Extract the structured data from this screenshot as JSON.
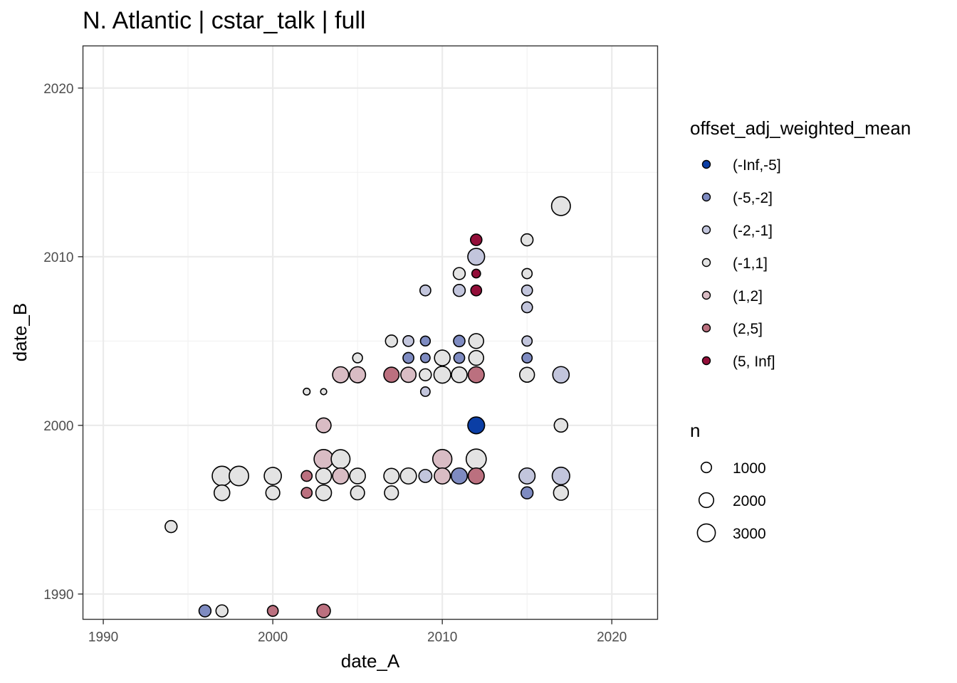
{
  "chart_data": {
    "type": "scatter",
    "title": "N. Atlantic | cstar_talk | full",
    "xlabel": "date_A",
    "ylabel": "date_B",
    "xlim": [
      1988.8,
      2022.7
    ],
    "ylim": [
      1988.5,
      2022.5
    ],
    "x_ticks": [
      1990,
      2000,
      2010,
      2020
    ],
    "y_ticks": [
      1990,
      2000,
      2010,
      2020
    ],
    "grid": true,
    "legend_position": "right",
    "color_legend": {
      "title": "offset_adj_weighted_mean",
      "categories": [
        {
          "label": "(-Inf,-5]",
          "color": "#0b3ea5"
        },
        {
          "label": "(-5,-2]",
          "color": "#7e8bc1"
        },
        {
          "label": "(-2,-1]",
          "color": "#c2c5dc"
        },
        {
          "label": "(-1,1]",
          "color": "#e3e3e3"
        },
        {
          "label": "(1,2]",
          "color": "#d9bcc4"
        },
        {
          "label": "(2,5]",
          "color": "#bb707f"
        },
        {
          "label": "(5, Inf]",
          "color": "#930e39"
        }
      ]
    },
    "size_legend": {
      "title": "n",
      "values": [
        1000,
        2000,
        3000
      ]
    },
    "points": [
      {
        "x": 1994,
        "y": 1994,
        "n": 900,
        "bin": "(-1,1]"
      },
      {
        "x": 1996,
        "y": 1989,
        "n": 900,
        "bin": "(-5,-2]"
      },
      {
        "x": 1997,
        "y": 1989,
        "n": 900,
        "bin": "(-1,1]"
      },
      {
        "x": 2000,
        "y": 1989,
        "n": 700,
        "bin": "(2,5]"
      },
      {
        "x": 2003,
        "y": 1989,
        "n": 1200,
        "bin": "(2,5]"
      },
      {
        "x": 1997,
        "y": 1997,
        "n": 2800,
        "bin": "(-1,1]"
      },
      {
        "x": 1997,
        "y": 1996,
        "n": 1700,
        "bin": "(-1,1]"
      },
      {
        "x": 1998,
        "y": 1997,
        "n": 2800,
        "bin": "(-1,1]"
      },
      {
        "x": 2000,
        "y": 1997,
        "n": 2100,
        "bin": "(-1,1]"
      },
      {
        "x": 2000,
        "y": 1996,
        "n": 1300,
        "bin": "(-1,1]"
      },
      {
        "x": 2002,
        "y": 1997,
        "n": 700,
        "bin": "(2,5]"
      },
      {
        "x": 2002,
        "y": 1996,
        "n": 700,
        "bin": "(2,5]"
      },
      {
        "x": 2003,
        "y": 1997,
        "n": 1700,
        "bin": "(-1,1]"
      },
      {
        "x": 2003,
        "y": 1996,
        "n": 1700,
        "bin": "(-1,1]"
      },
      {
        "x": 2003,
        "y": 1998,
        "n": 2700,
        "bin": "(1,2]"
      },
      {
        "x": 2004,
        "y": 1997,
        "n": 1800,
        "bin": "(1,2]"
      },
      {
        "x": 2004,
        "y": 1998,
        "n": 2600,
        "bin": "(-1,1]"
      },
      {
        "x": 2005,
        "y": 1997,
        "n": 1700,
        "bin": "(-1,1]"
      },
      {
        "x": 2005,
        "y": 1996,
        "n": 1300,
        "bin": "(-1,1]"
      },
      {
        "x": 2007,
        "y": 1997,
        "n": 1600,
        "bin": "(-1,1]"
      },
      {
        "x": 2007,
        "y": 1996,
        "n": 1300,
        "bin": "(-1,1]"
      },
      {
        "x": 2008,
        "y": 1997,
        "n": 1800,
        "bin": "(-1,1]"
      },
      {
        "x": 2009,
        "y": 1997,
        "n": 1100,
        "bin": "(-2,-1]"
      },
      {
        "x": 2010,
        "y": 1997,
        "n": 1800,
        "bin": "(1,2]"
      },
      {
        "x": 2010,
        "y": 1998,
        "n": 2700,
        "bin": "(1,2]"
      },
      {
        "x": 2011,
        "y": 1997,
        "n": 1800,
        "bin": "(-5,-2]"
      },
      {
        "x": 2012,
        "y": 1997,
        "n": 1800,
        "bin": "(2,5]"
      },
      {
        "x": 2012,
        "y": 1998,
        "n": 3000,
        "bin": "(-1,1]"
      },
      {
        "x": 2015,
        "y": 1997,
        "n": 1800,
        "bin": "(-2,-1]"
      },
      {
        "x": 2015,
        "y": 1996,
        "n": 900,
        "bin": "(-5,-2]"
      },
      {
        "x": 2017,
        "y": 1997,
        "n": 2200,
        "bin": "(-2,-1]"
      },
      {
        "x": 2017,
        "y": 1996,
        "n": 1500,
        "bin": "(-1,1]"
      },
      {
        "x": 2003,
        "y": 2000,
        "n": 1500,
        "bin": "(1,2]"
      },
      {
        "x": 2012,
        "y": 2000,
        "n": 2000,
        "bin": "(-Inf,-5]"
      },
      {
        "x": 2017,
        "y": 2000,
        "n": 1200,
        "bin": "(-1,1]"
      },
      {
        "x": 2002,
        "y": 2002,
        "n": 200,
        "bin": "(-1,1]"
      },
      {
        "x": 2003,
        "y": 2002,
        "n": 150,
        "bin": "(-1,1]"
      },
      {
        "x": 2009,
        "y": 2002,
        "n": 500,
        "bin": "(-2,-1]"
      },
      {
        "x": 2004,
        "y": 2003,
        "n": 1800,
        "bin": "(1,2]"
      },
      {
        "x": 2005,
        "y": 2003,
        "n": 1800,
        "bin": "(1,2]"
      },
      {
        "x": 2007,
        "y": 2003,
        "n": 1600,
        "bin": "(2,5]"
      },
      {
        "x": 2008,
        "y": 2003,
        "n": 1600,
        "bin": "(1,2]"
      },
      {
        "x": 2009,
        "y": 2003,
        "n": 900,
        "bin": "(-1,1]"
      },
      {
        "x": 2010,
        "y": 2003,
        "n": 2000,
        "bin": "(-1,1]"
      },
      {
        "x": 2011,
        "y": 2003,
        "n": 1700,
        "bin": "(-1,1]"
      },
      {
        "x": 2012,
        "y": 2003,
        "n": 1800,
        "bin": "(2,5]"
      },
      {
        "x": 2015,
        "y": 2003,
        "n": 1500,
        "bin": "(-1,1]"
      },
      {
        "x": 2017,
        "y": 2003,
        "n": 1900,
        "bin": "(-2,-1]"
      },
      {
        "x": 2005,
        "y": 2004,
        "n": 550,
        "bin": "(-1,1]"
      },
      {
        "x": 2008,
        "y": 2004,
        "n": 700,
        "bin": "(-5,-2]"
      },
      {
        "x": 2009,
        "y": 2004,
        "n": 500,
        "bin": "(-5,-2]"
      },
      {
        "x": 2010,
        "y": 2004,
        "n": 1700,
        "bin": "(-1,1]"
      },
      {
        "x": 2011,
        "y": 2004,
        "n": 700,
        "bin": "(-5,-2]"
      },
      {
        "x": 2012,
        "y": 2004,
        "n": 1500,
        "bin": "(-1,1]"
      },
      {
        "x": 2015,
        "y": 2004,
        "n": 600,
        "bin": "(-5,-2]"
      },
      {
        "x": 2007,
        "y": 2005,
        "n": 900,
        "bin": "(-1,1]"
      },
      {
        "x": 2008,
        "y": 2005,
        "n": 700,
        "bin": "(-2,-1]"
      },
      {
        "x": 2009,
        "y": 2005,
        "n": 550,
        "bin": "(-5,-2]"
      },
      {
        "x": 2011,
        "y": 2005,
        "n": 800,
        "bin": "(-5,-2]"
      },
      {
        "x": 2012,
        "y": 2005,
        "n": 1500,
        "bin": "(-1,1]"
      },
      {
        "x": 2015,
        "y": 2005,
        "n": 600,
        "bin": "(-2,-1]"
      },
      {
        "x": 2015,
        "y": 2007,
        "n": 700,
        "bin": "(-2,-1]"
      },
      {
        "x": 2009,
        "y": 2008,
        "n": 700,
        "bin": "(-2,-1]"
      },
      {
        "x": 2011,
        "y": 2008,
        "n": 900,
        "bin": "(-2,-1]"
      },
      {
        "x": 2012,
        "y": 2008,
        "n": 700,
        "bin": "(5, Inf]"
      },
      {
        "x": 2015,
        "y": 2008,
        "n": 700,
        "bin": "(-2,-1]"
      },
      {
        "x": 2011,
        "y": 2009,
        "n": 900,
        "bin": "(-1,1]"
      },
      {
        "x": 2012,
        "y": 2009,
        "n": 400,
        "bin": "(5, Inf]"
      },
      {
        "x": 2015,
        "y": 2009,
        "n": 600,
        "bin": "(-1,1]"
      },
      {
        "x": 2012,
        "y": 2010,
        "n": 2000,
        "bin": "(-2,-1]"
      },
      {
        "x": 2012,
        "y": 2011,
        "n": 800,
        "bin": "(5, Inf]"
      },
      {
        "x": 2015,
        "y": 2011,
        "n": 900,
        "bin": "(-1,1]"
      },
      {
        "x": 2017,
        "y": 2013,
        "n": 2600,
        "bin": "(-1,1]"
      }
    ]
  }
}
